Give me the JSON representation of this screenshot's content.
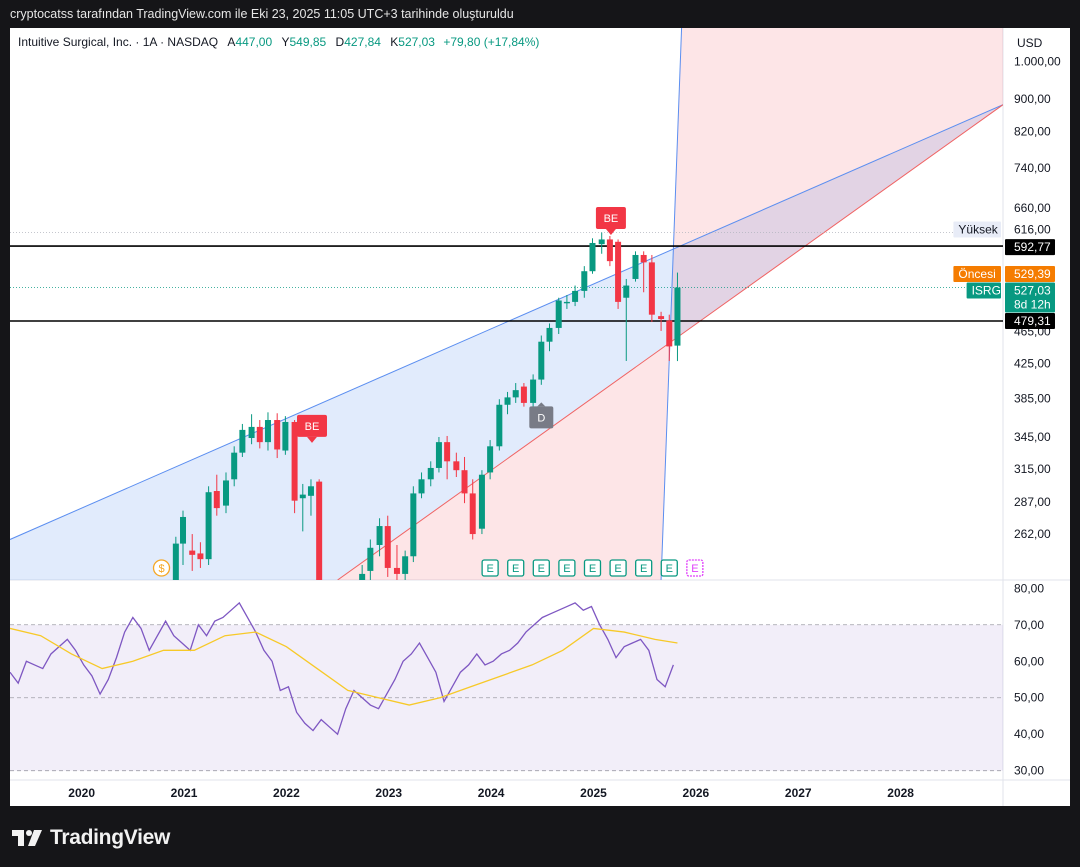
{
  "header": {
    "caption": "cryptocatss tarafından TradingView.com ile Eki 23, 2025 11:05 UTC+3 tarihinde oluşturuldu"
  },
  "legend": {
    "symbol": "Intuitive Surgical, Inc. · 1A · NASDAQ",
    "open_label": "A",
    "open": "447,00",
    "high_label": "Y",
    "high": "549,85",
    "low_label": "D",
    "low": "427,84",
    "close_label": "K",
    "close": "527,03",
    "change": "+79,80 (+17,84%)"
  },
  "currency": "USD",
  "brand": "TradingView",
  "colors": {
    "up": "#089981",
    "down": "#f23645",
    "rsi": "#7e57c2",
    "rsi_ma": "#f7c928",
    "event": "#089981",
    "dividend": "#f5a623",
    "channel_line": "#5b8ef0",
    "support_line": "#f06363"
  },
  "chart_data": [
    {
      "type": "candlestick",
      "title": "Intuitive Surgical, Inc. · 1A · NASDAQ",
      "scale": "log",
      "ylim": [
        230,
        1100
      ],
      "xlim": [
        2019.3,
        2029.0
      ],
      "x_ticks": [
        "2020",
        "2021",
        "2022",
        "2023",
        "2024",
        "2025",
        "2026",
        "2027",
        "2028"
      ],
      "y_ticks": [
        "1.000,00",
        "900,00",
        "820,00",
        "740,00",
        "660,00",
        "465,00",
        "425,00",
        "385,00",
        "345,00",
        "315,00",
        "287,00",
        "262,00"
      ],
      "price_labels": [
        {
          "label": "Yüksek",
          "value": "616,00",
          "y": 616,
          "style": "high"
        },
        {
          "label": "",
          "value": "592,77",
          "y": 592.77,
          "style": "line"
        },
        {
          "label": "Öncesi",
          "value": "529,39",
          "y": 529.39,
          "style": "pre"
        },
        {
          "label": "ISRG",
          "value": "527,03",
          "sub": "8d 12h",
          "y": 527.03,
          "style": "last"
        },
        {
          "label": "",
          "value": "479,31",
          "y": 479.31,
          "style": "line"
        }
      ],
      "hlines": [
        592.77,
        479.31
      ],
      "candles": [
        {
          "t": 2020.92,
          "o": 230,
          "h": 260,
          "l": 226,
          "c": 255
        },
        {
          "t": 2020.99,
          "o": 255,
          "h": 280,
          "l": 240,
          "c": 275
        },
        {
          "t": 2021.08,
          "o": 250,
          "h": 262,
          "l": 236,
          "c": 247
        },
        {
          "t": 2021.16,
          "o": 248,
          "h": 256,
          "l": 238,
          "c": 244
        },
        {
          "t": 2021.24,
          "o": 244,
          "h": 300,
          "l": 240,
          "c": 295
        },
        {
          "t": 2021.32,
          "o": 296,
          "h": 310,
          "l": 276,
          "c": 282
        },
        {
          "t": 2021.41,
          "o": 284,
          "h": 312,
          "l": 278,
          "c": 305
        },
        {
          "t": 2021.49,
          "o": 306,
          "h": 336,
          "l": 300,
          "c": 330
        },
        {
          "t": 2021.57,
          "o": 330,
          "h": 358,
          "l": 326,
          "c": 352
        },
        {
          "t": 2021.66,
          "o": 344,
          "h": 368,
          "l": 338,
          "c": 355
        },
        {
          "t": 2021.74,
          "o": 355,
          "h": 362,
          "l": 334,
          "c": 340
        },
        {
          "t": 2021.82,
          "o": 340,
          "h": 370,
          "l": 332,
          "c": 362
        },
        {
          "t": 2021.91,
          "o": 362,
          "h": 369,
          "l": 325,
          "c": 333
        },
        {
          "t": 2021.99,
          "o": 332,
          "h": 366,
          "l": 328,
          "c": 360
        },
        {
          "t": 2022.08,
          "o": 360,
          "h": 362,
          "l": 278,
          "c": 288
        },
        {
          "t": 2022.16,
          "o": 290,
          "h": 302,
          "l": 264,
          "c": 293
        },
        {
          "t": 2022.24,
          "o": 292,
          "h": 306,
          "l": 276,
          "c": 300
        },
        {
          "t": 2022.32,
          "o": 304,
          "h": 306,
          "l": 226,
          "c": 230
        },
        {
          "t": 2022.74,
          "o": 230,
          "h": 240,
          "l": 222,
          "c": 234
        },
        {
          "t": 2022.82,
          "o": 236,
          "h": 258,
          "l": 230,
          "c": 252
        },
        {
          "t": 2022.91,
          "o": 254,
          "h": 274,
          "l": 246,
          "c": 268
        },
        {
          "t": 2022.99,
          "o": 268,
          "h": 276,
          "l": 232,
          "c": 238
        },
        {
          "t": 2023.08,
          "o": 238,
          "h": 254,
          "l": 226,
          "c": 234
        },
        {
          "t": 2023.16,
          "o": 234,
          "h": 250,
          "l": 228,
          "c": 246
        },
        {
          "t": 2023.24,
          "o": 246,
          "h": 300,
          "l": 242,
          "c": 294
        },
        {
          "t": 2023.32,
          "o": 294,
          "h": 312,
          "l": 290,
          "c": 306
        },
        {
          "t": 2023.41,
          "o": 306,
          "h": 322,
          "l": 300,
          "c": 316
        },
        {
          "t": 2023.49,
          "o": 316,
          "h": 345,
          "l": 312,
          "c": 340
        },
        {
          "t": 2023.57,
          "o": 340,
          "h": 346,
          "l": 306,
          "c": 322
        },
        {
          "t": 2023.66,
          "o": 322,
          "h": 330,
          "l": 308,
          "c": 314
        },
        {
          "t": 2023.74,
          "o": 314,
          "h": 326,
          "l": 286,
          "c": 294
        },
        {
          "t": 2023.82,
          "o": 294,
          "h": 306,
          "l": 258,
          "c": 262
        },
        {
          "t": 2023.91,
          "o": 266,
          "h": 314,
          "l": 262,
          "c": 310
        },
        {
          "t": 2023.99,
          "o": 312,
          "h": 342,
          "l": 306,
          "c": 336
        },
        {
          "t": 2024.08,
          "o": 336,
          "h": 384,
          "l": 332,
          "c": 378
        },
        {
          "t": 2024.16,
          "o": 378,
          "h": 392,
          "l": 368,
          "c": 386
        },
        {
          "t": 2024.24,
          "o": 386,
          "h": 402,
          "l": 380,
          "c": 394
        },
        {
          "t": 2024.32,
          "o": 398,
          "h": 402,
          "l": 376,
          "c": 380
        },
        {
          "t": 2024.41,
          "o": 380,
          "h": 412,
          "l": 374,
          "c": 406
        },
        {
          "t": 2024.49,
          "o": 406,
          "h": 460,
          "l": 400,
          "c": 452
        },
        {
          "t": 2024.57,
          "o": 452,
          "h": 476,
          "l": 440,
          "c": 470
        },
        {
          "t": 2024.66,
          "o": 470,
          "h": 512,
          "l": 462,
          "c": 508
        },
        {
          "t": 2024.74,
          "o": 504,
          "h": 516,
          "l": 496,
          "c": 506
        },
        {
          "t": 2024.82,
          "o": 506,
          "h": 530,
          "l": 500,
          "c": 522
        },
        {
          "t": 2024.91,
          "o": 522,
          "h": 560,
          "l": 512,
          "c": 552
        },
        {
          "t": 2024.99,
          "o": 552,
          "h": 606,
          "l": 548,
          "c": 598
        },
        {
          "t": 2025.08,
          "o": 596,
          "h": 616,
          "l": 580,
          "c": 604
        },
        {
          "t": 2025.16,
          "o": 604,
          "h": 610,
          "l": 560,
          "c": 568
        },
        {
          "t": 2025.24,
          "o": 600,
          "h": 604,
          "l": 496,
          "c": 506
        },
        {
          "t": 2025.32,
          "o": 512,
          "h": 540,
          "l": 428,
          "c": 530
        },
        {
          "t": 2025.41,
          "o": 540,
          "h": 584,
          "l": 536,
          "c": 578
        },
        {
          "t": 2025.49,
          "o": 578,
          "h": 584,
          "l": 520,
          "c": 566
        },
        {
          "t": 2025.57,
          "o": 566,
          "h": 578,
          "l": 478,
          "c": 488
        },
        {
          "t": 2025.66,
          "o": 486,
          "h": 492,
          "l": 466,
          "c": 482
        },
        {
          "t": 2025.74,
          "o": 480,
          "h": 488,
          "l": 428,
          "c": 446
        },
        {
          "t": 2025.82,
          "o": 447,
          "h": 549.85,
          "l": 427.84,
          "c": 527.03
        }
      ],
      "markers": [
        {
          "text": "BE",
          "t": 2022.25,
          "price": 355,
          "kind": "be"
        },
        {
          "text": "BE",
          "t": 2025.17,
          "price": 640,
          "kind": "be"
        },
        {
          "text": "D",
          "t": 2024.49,
          "price": 372,
          "kind": "d"
        }
      ],
      "event_row": {
        "dividend": {
          "text": "$",
          "t": 2020.78
        },
        "earnings": [
          {
            "text": "E",
            "t": 2023.99
          },
          {
            "text": "E",
            "t": 2024.24
          },
          {
            "text": "E",
            "t": 2024.49
          },
          {
            "text": "E",
            "t": 2024.74
          },
          {
            "text": "E",
            "t": 2024.99
          },
          {
            "text": "E",
            "t": 2025.24
          },
          {
            "text": "E",
            "t": 2025.49
          },
          {
            "text": "E",
            "t": 2025.74
          }
        ],
        "upcoming": {
          "text": "E",
          "t": 2025.99
        }
      },
      "drawings": {
        "channel_upper": [
          {
            "t": 2019.3,
            "p": 258
          },
          {
            "t": 2029.0,
            "p": 885
          }
        ],
        "channel_lower": [
          {
            "t": 2022.5,
            "p": 230
          },
          {
            "t": 2029.0,
            "p": 885
          }
        ],
        "vertical_ray": [
          {
            "t": 2025.66,
            "p": 230
          },
          {
            "t": 2025.9,
            "p": 1500
          }
        ]
      }
    },
    {
      "type": "line",
      "title": "RSI",
      "ylim": [
        28,
        82
      ],
      "y_ticks": [
        80,
        70,
        60,
        50,
        40,
        30
      ],
      "band": [
        30,
        70
      ],
      "midline": 50,
      "series": [
        {
          "name": "",
          "role": "rsi",
          "x": [
            2019.3,
            2019.38,
            2019.46,
            2019.54,
            2019.62,
            2019.7,
            2019.78,
            2019.86,
            2019.94,
            2020.02,
            2020.1,
            2020.18,
            2020.26,
            2020.34,
            2020.42,
            2020.5,
            2020.58,
            2020.66,
            2020.74,
            2020.82,
            2020.9,
            2020.98,
            2021.06,
            2021.14,
            2021.22,
            2021.3,
            2021.38,
            2021.46,
            2021.54,
            2021.62,
            2021.7,
            2021.78,
            2021.86,
            2021.94,
            2022.02,
            2022.1,
            2022.18,
            2022.26,
            2022.34,
            2022.42,
            2022.5,
            2022.58,
            2022.66,
            2022.74,
            2022.82,
            2022.9,
            2022.98,
            2023.06,
            2023.14,
            2023.22,
            2023.3,
            2023.38,
            2023.46,
            2023.54,
            2023.62,
            2023.7,
            2023.78,
            2023.86,
            2023.94,
            2024.02,
            2024.1,
            2024.18,
            2024.26,
            2024.34,
            2024.42,
            2024.5,
            2024.58,
            2024.66,
            2024.74,
            2024.82,
            2024.9,
            2024.98,
            2025.06,
            2025.14,
            2025.22,
            2025.3,
            2025.38,
            2025.46,
            2025.54,
            2025.62,
            2025.7,
            2025.78
          ],
          "values": [
            57,
            54,
            60,
            59,
            58,
            62,
            64,
            66,
            63,
            59,
            56,
            51,
            55,
            61,
            68,
            72,
            69,
            63,
            67,
            71,
            67,
            65,
            63,
            70,
            67,
            71,
            72,
            74,
            76,
            72,
            68,
            63,
            60,
            52,
            53,
            46,
            43,
            41,
            44,
            42,
            40,
            47,
            52,
            50,
            48,
            47,
            51,
            55,
            60,
            62,
            65,
            61,
            57,
            49,
            53,
            57,
            59,
            62,
            59,
            60,
            62,
            63,
            65,
            68,
            70,
            72,
            73,
            74,
            75,
            76,
            74,
            75,
            70,
            66,
            61,
            64,
            65,
            66,
            63,
            55,
            53,
            59
          ]
        },
        {
          "name": "",
          "role": "rsi_ma",
          "x": [
            2019.3,
            2019.6,
            2019.9,
            2020.2,
            2020.5,
            2020.8,
            2021.1,
            2021.4,
            2021.7,
            2022.0,
            2022.3,
            2022.6,
            2022.9,
            2023.2,
            2023.5,
            2023.8,
            2024.1,
            2024.4,
            2024.7,
            2025.0,
            2025.3,
            2025.6,
            2025.82
          ],
          "values": [
            69,
            67,
            62,
            58,
            60,
            63,
            63,
            67,
            68,
            64,
            58,
            52,
            50,
            48,
            50,
            53,
            56,
            59,
            63,
            69,
            68,
            66,
            65
          ]
        }
      ]
    }
  ]
}
